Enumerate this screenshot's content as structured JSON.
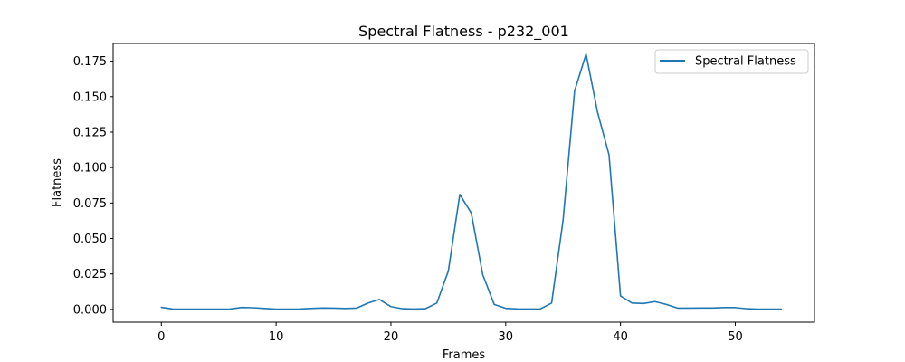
{
  "chart_data": {
    "type": "line",
    "title": "Spectral Flatness - p232_001",
    "xlabel": "Frames",
    "ylabel": "Flatness",
    "xlim": [
      -4.2,
      56.9
    ],
    "ylim": [
      -0.009,
      0.1875
    ],
    "xticks": [
      0,
      10,
      20,
      30,
      40,
      50
    ],
    "xtick_labels": [
      "0",
      "10",
      "20",
      "30",
      "40",
      "50"
    ],
    "yticks": [
      0.0,
      0.025,
      0.05,
      0.075,
      0.1,
      0.125,
      0.15,
      0.175
    ],
    "ytick_labels": [
      "0.000",
      "0.025",
      "0.050",
      "0.075",
      "0.100",
      "0.125",
      "0.150",
      "0.175"
    ],
    "grid": false,
    "legend_position": "upper right",
    "series": [
      {
        "name": "Spectral Flatness",
        "color": "#1f77b4",
        "x": [
          0,
          1,
          2,
          3,
          4,
          5,
          6,
          7,
          8,
          9,
          10,
          11,
          12,
          13,
          14,
          15,
          16,
          17,
          18,
          19,
          20,
          21,
          22,
          23,
          24,
          25,
          26,
          27,
          28,
          29,
          30,
          31,
          32,
          33,
          34,
          35,
          36,
          37,
          38,
          39,
          40,
          41,
          42,
          43,
          44,
          45,
          46,
          47,
          48,
          49,
          50,
          51,
          52,
          53,
          54
        ],
        "y": [
          0.0015,
          0.0003,
          0.0002,
          0.0002,
          0.0002,
          0.0002,
          0.0003,
          0.0014,
          0.0012,
          0.0007,
          0.0002,
          0.0002,
          0.0003,
          0.0007,
          0.001,
          0.0009,
          0.0007,
          0.0009,
          0.0045,
          0.007,
          0.002,
          0.0005,
          0.0003,
          0.0005,
          0.0045,
          0.027,
          0.081,
          0.068,
          0.0245,
          0.0035,
          0.0008,
          0.0004,
          0.0003,
          0.0003,
          0.0045,
          0.063,
          0.154,
          0.18,
          0.139,
          0.109,
          0.0095,
          0.0045,
          0.0042,
          0.0055,
          0.0035,
          0.0009,
          0.0009,
          0.001,
          0.001,
          0.0013,
          0.0013,
          0.0005,
          0.0002,
          0.0002,
          0.0002
        ]
      }
    ]
  }
}
